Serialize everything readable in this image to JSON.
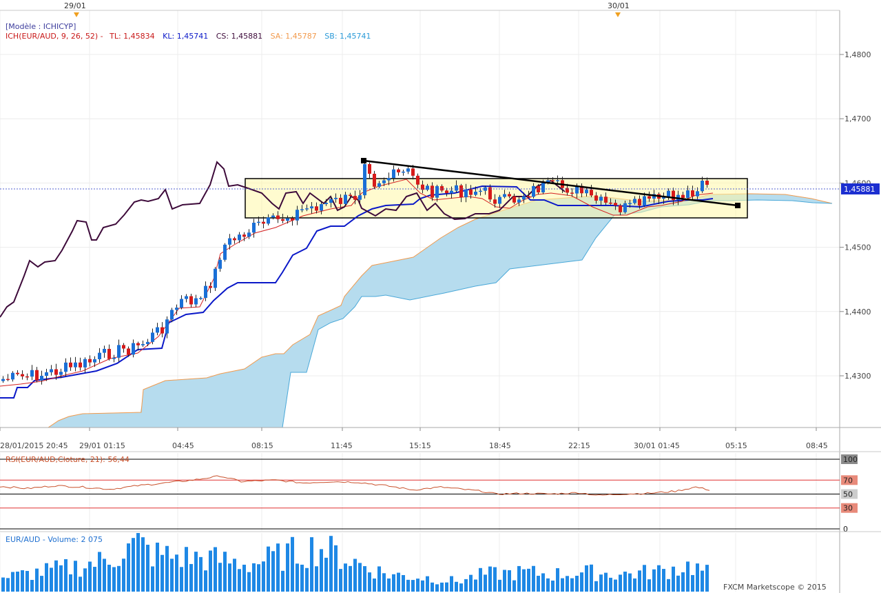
{
  "header": {
    "date_marker_1": "29/01",
    "date_marker_2": "30/01"
  },
  "legend": {
    "model": "[Modèle : ICHICYP]",
    "ich_prefix": "ICH(EUR/AUD, 9, 26, 52) -",
    "tl": "TL: 1,45834",
    "kl": "KL: 1,45741",
    "cs": "CS: 1,45881",
    "sa": "SA: 1,45787",
    "sb": "SB: 1,45741"
  },
  "price_axis": {
    "ticks": [
      {
        "value": 1.48,
        "label": "1,4800"
      },
      {
        "value": 1.47,
        "label": "1,4700"
      },
      {
        "value": 1.46,
        "label": "1,4600"
      },
      {
        "value": 1.45,
        "label": "1,4500"
      },
      {
        "value": 1.44,
        "label": "1,4400"
      },
      {
        "value": 1.43,
        "label": "1,4300"
      }
    ],
    "current_label": "1,45881",
    "current_value": 1.45881
  },
  "time_axis": {
    "labels": [
      "28/01/2015 20:45",
      "29/01 01:15",
      "04:45",
      "08:15",
      "11:45",
      "15:15",
      "18:45",
      "22:15",
      "30/01 01:45",
      "05:15",
      "08:45"
    ]
  },
  "rsi": {
    "label": "RSI(EUR/AUD,Cloture, 21): 56,44",
    "levels": [
      {
        "value": 100,
        "label": "100"
      },
      {
        "value": 70,
        "label": "70"
      },
      {
        "value": 50,
        "label": "50"
      },
      {
        "value": 30,
        "label": "30"
      },
      {
        "value": 0,
        "label": "0"
      }
    ]
  },
  "volume": {
    "label": "EUR/AUD - Volume: 2 075"
  },
  "watermark": "FXCM Marketscope © 2015",
  "colors": {
    "up": "#1a6fd6",
    "down": "#d61a1a",
    "tenkan": "#d42020",
    "kijun": "#0a18c8",
    "chikou": "#3d0a3a",
    "senkou_a": "#f29a4c",
    "senkou_b": "#4aa8d8",
    "cloud_bull": "#b6dcee",
    "cloud_bear": "#f8d6b2",
    "rsi_line": "#c8502a",
    "volume": "#1e88e5"
  },
  "chart_data": {
    "type": "candlestick",
    "instrument": "EUR/AUD",
    "ylim": [
      1.422,
      1.4855
    ],
    "rsi_ylim": [
      0,
      100
    ],
    "rsi_last": 56.44,
    "volume_last": 2075
  }
}
